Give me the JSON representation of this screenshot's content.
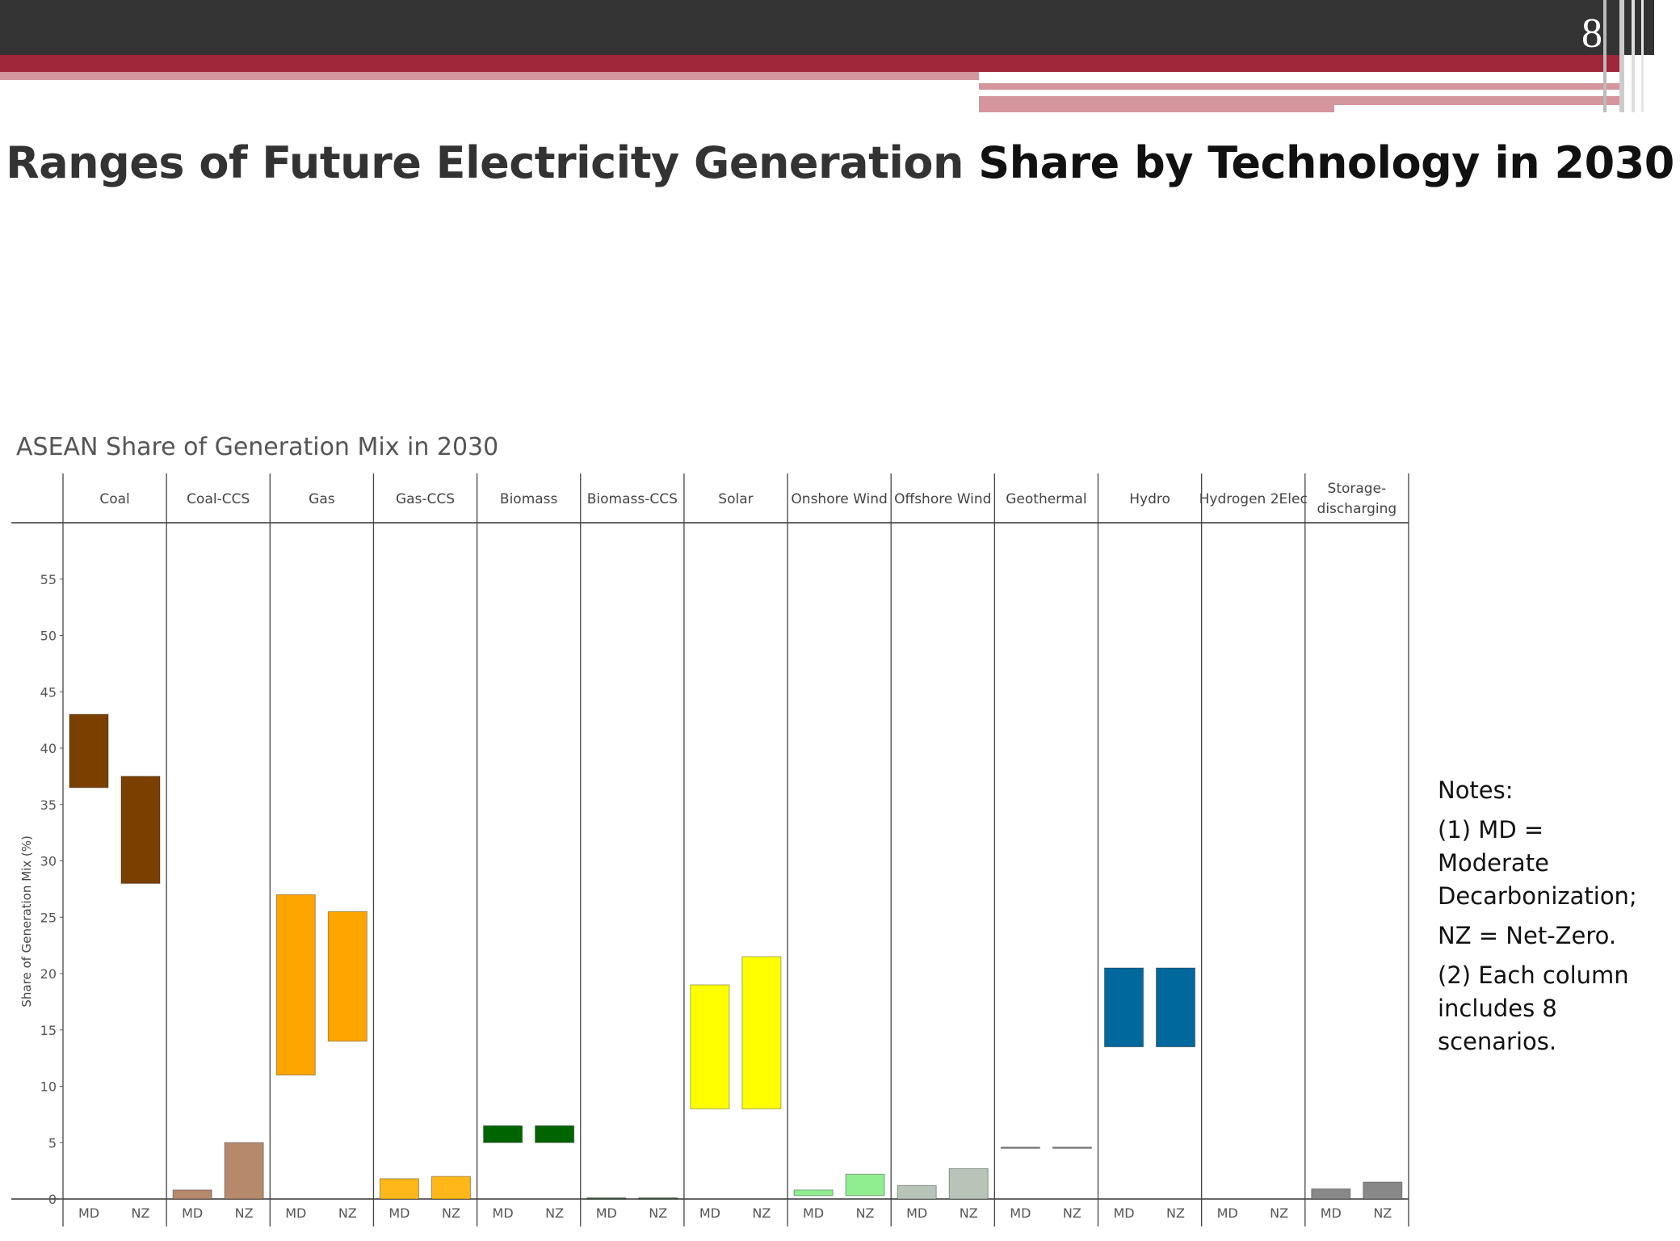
{
  "slide": {
    "number": "8",
    "title_part1": "Ranges of Future Electricity Generation ",
    "title_part2": "Share by Technology in 2030"
  },
  "notes": {
    "heading": "Notes:",
    "line1": "(1) MD = Moderate Decarbonization;",
    "line2": "NZ = Net-Zero.",
    "line3": "(2) Each column includes 8 scenarios."
  },
  "colors": {
    "topbar": "#333333",
    "accent_red": "#a0263a",
    "accent_pink": "#d4959c"
  },
  "chart_data": {
    "type": "bar",
    "title": "ASEAN Share of Generation Mix in 2030",
    "ylabel": "Share of Generation Mix (%)",
    "ylim": [
      0,
      60
    ],
    "yticks": [
      0,
      5,
      10,
      15,
      20,
      25,
      30,
      35,
      40,
      45,
      50,
      55
    ],
    "categories": [
      "Coal",
      "Coal-CCS",
      "Gas",
      "Gas-CCS",
      "Biomass",
      "Biomass-CCS",
      "Solar",
      "Onshore Wind",
      "Offshore Wind",
      "Geothermal",
      "Hydro",
      "Hydrogen 2Elec",
      "Storage-discharging"
    ],
    "subcategories": [
      "MD",
      "NZ"
    ],
    "series": [
      {
        "category": "Coal",
        "color": "#7b3f00",
        "MD": [
          36.5,
          43
        ],
        "NZ": [
          28,
          37.5
        ]
      },
      {
        "category": "Coal-CCS",
        "color": "#b5896a",
        "MD": [
          0,
          0.8
        ],
        "NZ": [
          0,
          5
        ]
      },
      {
        "category": "Gas",
        "color": "#ffa500",
        "MD": [
          11,
          27
        ],
        "NZ": [
          14,
          25.5
        ]
      },
      {
        "category": "Gas-CCS",
        "color": "#ffb71a",
        "MD": [
          0,
          1.8
        ],
        "NZ": [
          0,
          2
        ]
      },
      {
        "category": "Biomass",
        "color": "#006400",
        "MD": [
          5,
          6.5
        ],
        "NZ": [
          5,
          6.5
        ]
      },
      {
        "category": "Biomass-CCS",
        "color": "#3a5f3a",
        "MD": [
          0,
          0.1
        ],
        "NZ": [
          0,
          0.1
        ]
      },
      {
        "category": "Solar",
        "color": "#ffff00",
        "MD": [
          8,
          19
        ],
        "NZ": [
          8,
          21.5
        ]
      },
      {
        "category": "Onshore Wind",
        "color": "#90ee90",
        "MD": [
          0.3,
          0.8
        ],
        "NZ": [
          0.3,
          2.2
        ]
      },
      {
        "category": "Offshore Wind",
        "color": "#b7c4b7",
        "MD": [
          0,
          1.2
        ],
        "NZ": [
          0,
          2.7
        ]
      },
      {
        "category": "Geothermal",
        "color": "#888888",
        "MD": [
          4.5,
          4.6
        ],
        "NZ": [
          4.5,
          4.6
        ]
      },
      {
        "category": "Hydro",
        "color": "#00689c",
        "MD": [
          13.5,
          20.5
        ],
        "NZ": [
          13.5,
          20.5
        ]
      },
      {
        "category": "Hydrogen 2Elec",
        "color": "#999999",
        "MD": [
          0,
          0
        ],
        "NZ": [
          0,
          0
        ]
      },
      {
        "category": "Storage-discharging",
        "color": "#888888",
        "MD": [
          0,
          0.9
        ],
        "NZ": [
          0,
          1.5
        ]
      }
    ],
    "header_labels": [
      [
        "Coal"
      ],
      [
        "Coal-CCS"
      ],
      [
        "Gas"
      ],
      [
        "Gas-CCS"
      ],
      [
        "Biomass"
      ],
      [
        "Biomass-CCS"
      ],
      [
        "Solar"
      ],
      [
        "Onshore Wind"
      ],
      [
        "Offshore Wind"
      ],
      [
        "Geothermal"
      ],
      [
        "Hydro"
      ],
      [
        "Hydrogen 2Elec"
      ],
      [
        "Storage-",
        "discharging"
      ]
    ],
    "grid": false,
    "legend": "none"
  }
}
